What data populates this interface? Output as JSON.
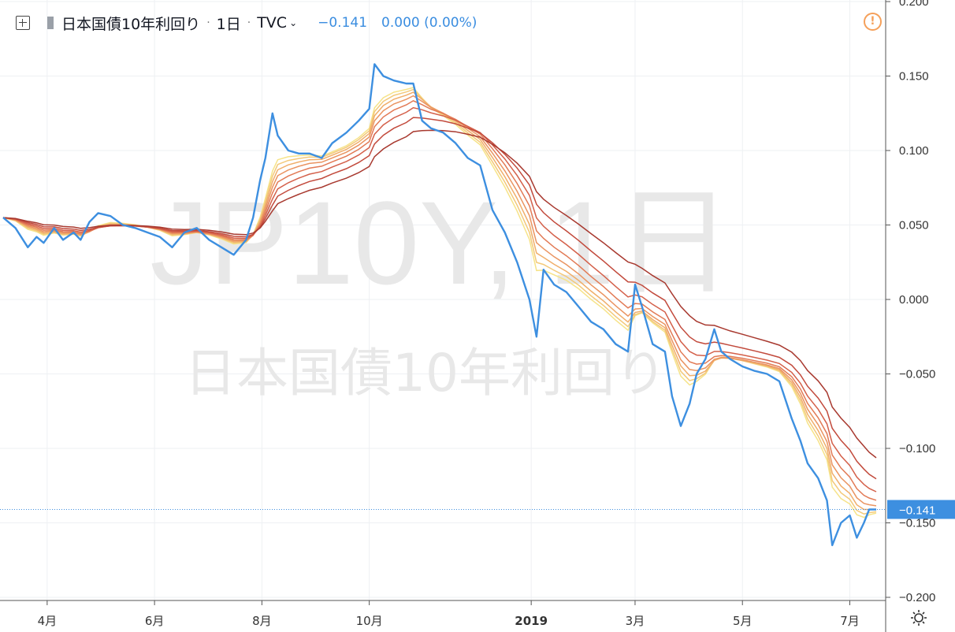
{
  "header": {
    "symbol_name": "日本国債10年利回り",
    "interval": "1日",
    "source": "TVC",
    "last_value": "−0.141",
    "change": "0.000 (0.00%)"
  },
  "watermark": {
    "line1": "JP10Y, 1日",
    "line2": "日本国債10年利回り"
  },
  "price_label": "−0.141",
  "colors": {
    "price_line": "#3d8fe0",
    "label_bg": "#3d8fe0",
    "watermark": "#e8e8e8",
    "grid": "#eef0f3",
    "ribbon": [
      "#f6e389",
      "#f3c97a",
      "#f0ae6a",
      "#ea9461",
      "#e27a55",
      "#d4604a",
      "#c24a3c",
      "#a8392f"
    ]
  },
  "chart_data": {
    "type": "line",
    "title": "",
    "xlabel": "",
    "ylabel": "",
    "ylim": [
      -0.2,
      0.2
    ],
    "y_ticks": [
      "0.200",
      "0.150",
      "0.100",
      "0.050",
      "0.000",
      "−0.050",
      "−0.100",
      "−0.150",
      "−0.200"
    ],
    "y_tick_values": [
      0.2,
      0.15,
      0.1,
      0.05,
      0,
      -0.05,
      -0.1,
      -0.15,
      -0.2
    ],
    "x_ticks": [
      {
        "label": "4月",
        "date": "2018-04-01"
      },
      {
        "label": "6月",
        "date": "2018-06-01"
      },
      {
        "label": "8月",
        "date": "2018-08-01"
      },
      {
        "label": "10月",
        "date": "2018-10-01"
      },
      {
        "label": "2019",
        "date": "2019-01-01",
        "bold": true
      },
      {
        "label": "3月",
        "date": "2019-03-01"
      },
      {
        "label": "5月",
        "date": "2019-05-01"
      },
      {
        "label": "7月",
        "date": "2019-07-01"
      }
    ],
    "x_range": [
      "2018-03-07",
      "2019-07-16"
    ],
    "grid": true,
    "legend": "none",
    "series": [
      {
        "color": "#3d8fe0",
        "points": [
          [
            "2018-03-07",
            0.055
          ],
          [
            "2018-03-14",
            0.048
          ],
          [
            "2018-03-21",
            0.035
          ],
          [
            "2018-03-26",
            0.042
          ],
          [
            "2018-03-30",
            0.038
          ],
          [
            "2018-04-05",
            0.048
          ],
          [
            "2018-04-10",
            0.04
          ],
          [
            "2018-04-16",
            0.045
          ],
          [
            "2018-04-20",
            0.04
          ],
          [
            "2018-04-25",
            0.052
          ],
          [
            "2018-04-30",
            0.058
          ],
          [
            "2018-05-07",
            0.056
          ],
          [
            "2018-05-14",
            0.05
          ],
          [
            "2018-05-21",
            0.048
          ],
          [
            "2018-05-28",
            0.045
          ],
          [
            "2018-06-04",
            0.042
          ],
          [
            "2018-06-11",
            0.035
          ],
          [
            "2018-06-18",
            0.045
          ],
          [
            "2018-06-25",
            0.048
          ],
          [
            "2018-07-02",
            0.04
          ],
          [
            "2018-07-09",
            0.035
          ],
          [
            "2018-07-16",
            0.03
          ],
          [
            "2018-07-23",
            0.04
          ],
          [
            "2018-07-27",
            0.055
          ],
          [
            "2018-07-31",
            0.08
          ],
          [
            "2018-08-03",
            0.095
          ],
          [
            "2018-08-07",
            0.125
          ],
          [
            "2018-08-10",
            0.11
          ],
          [
            "2018-08-16",
            0.1
          ],
          [
            "2018-08-22",
            0.098
          ],
          [
            "2018-08-28",
            0.098
          ],
          [
            "2018-09-04",
            0.095
          ],
          [
            "2018-09-10",
            0.105
          ],
          [
            "2018-09-18",
            0.112
          ],
          [
            "2018-09-25",
            0.12
          ],
          [
            "2018-10-01",
            0.128
          ],
          [
            "2018-10-04",
            0.158
          ],
          [
            "2018-10-09",
            0.15
          ],
          [
            "2018-10-15",
            0.147
          ],
          [
            "2018-10-22",
            0.145
          ],
          [
            "2018-10-26",
            0.145
          ],
          [
            "2018-10-31",
            0.12
          ],
          [
            "2018-11-05",
            0.115
          ],
          [
            "2018-11-12",
            0.112
          ],
          [
            "2018-11-19",
            0.105
          ],
          [
            "2018-11-26",
            0.095
          ],
          [
            "2018-12-03",
            0.09
          ],
          [
            "2018-12-10",
            0.06
          ],
          [
            "2018-12-17",
            0.045
          ],
          [
            "2018-12-24",
            0.025
          ],
          [
            "2018-12-31",
            0.0
          ],
          [
            "2019-01-04",
            -0.025
          ],
          [
            "2019-01-08",
            0.02
          ],
          [
            "2019-01-14",
            0.01
          ],
          [
            "2019-01-21",
            0.005
          ],
          [
            "2019-01-28",
            -0.005
          ],
          [
            "2019-02-04",
            -0.015
          ],
          [
            "2019-02-11",
            -0.02
          ],
          [
            "2019-02-18",
            -0.03
          ],
          [
            "2019-02-25",
            -0.035
          ],
          [
            "2019-03-01",
            0.01
          ],
          [
            "2019-03-05",
            -0.005
          ],
          [
            "2019-03-11",
            -0.03
          ],
          [
            "2019-03-18",
            -0.035
          ],
          [
            "2019-03-22",
            -0.065
          ],
          [
            "2019-03-27",
            -0.085
          ],
          [
            "2019-04-01",
            -0.07
          ],
          [
            "2019-04-05",
            -0.05
          ],
          [
            "2019-04-10",
            -0.04
          ],
          [
            "2019-04-15",
            -0.02
          ],
          [
            "2019-04-19",
            -0.035
          ],
          [
            "2019-04-24",
            -0.04
          ],
          [
            "2019-05-01",
            -0.045
          ],
          [
            "2019-05-08",
            -0.048
          ],
          [
            "2019-05-15",
            -0.05
          ],
          [
            "2019-05-22",
            -0.055
          ],
          [
            "2019-05-29",
            -0.08
          ],
          [
            "2019-06-03",
            -0.095
          ],
          [
            "2019-06-07",
            -0.11
          ],
          [
            "2019-06-13",
            -0.12
          ],
          [
            "2019-06-18",
            -0.135
          ],
          [
            "2019-06-21",
            -0.165
          ],
          [
            "2019-06-26",
            -0.15
          ],
          [
            "2019-07-01",
            -0.145
          ],
          [
            "2019-07-05",
            -0.16
          ],
          [
            "2019-07-09",
            -0.15
          ],
          [
            "2019-07-12",
            -0.141
          ],
          [
            "2019-07-16",
            -0.141
          ]
        ]
      }
    ]
  }
}
